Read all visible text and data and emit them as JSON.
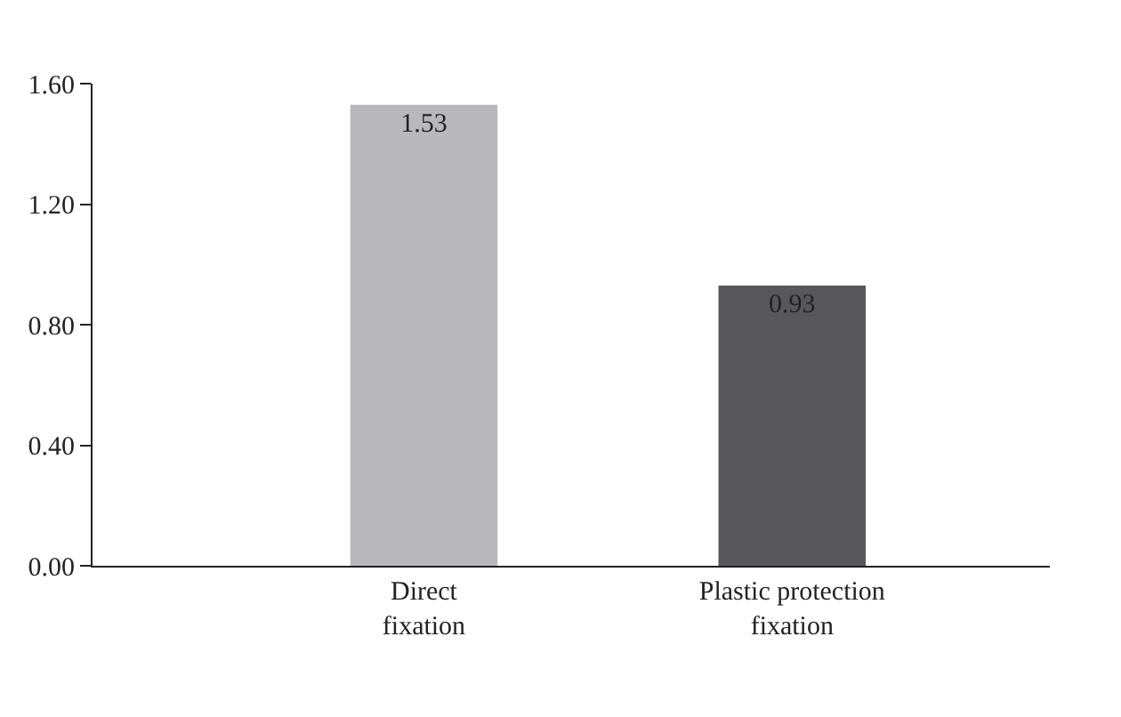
{
  "chart_data": {
    "type": "bar",
    "categories": [
      "Direct fixation",
      "Plastic protection fixation"
    ],
    "values": [
      1.53,
      0.93
    ],
    "colors": [
      "#b8b8ba",
      "#58585a"
    ],
    "data_labels": true,
    "ylim": [
      0,
      1.6
    ],
    "yticks": [
      {
        "value": 0,
        "label": "0.00"
      },
      {
        "value": 0.4,
        "label": "0.40"
      },
      {
        "value": 0.8,
        "label": "0.80"
      },
      {
        "value": 1.2,
        "label": "1.20"
      },
      {
        "value": 1.6,
        "label": "1.60"
      }
    ]
  }
}
